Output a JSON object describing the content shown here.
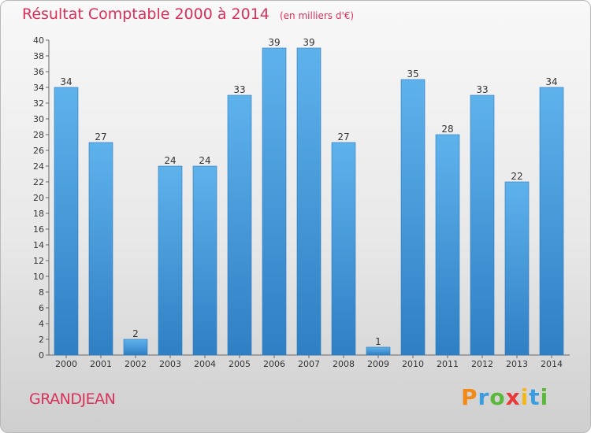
{
  "header": {
    "title": "Résultat Comptable 2000 à 2014",
    "unit": "(en milliers d'€)"
  },
  "footer": {
    "commune": "GRANDJEAN",
    "logo_text": "Proxiti",
    "logo_colors": [
      "#f28a1a",
      "#3a9de0",
      "#5bb83a",
      "#e83a3a",
      "#f2b81a",
      "#3a9de0",
      "#5bb83a"
    ]
  },
  "colors": {
    "bar_top": "#5eb2ec",
    "bar_bottom": "#2f7fc4",
    "accent": "#d9315a",
    "axis_text": "#333333"
  },
  "chart_data": {
    "type": "bar",
    "title": "Résultat Comptable 2000 à 2014",
    "xlabel": "",
    "ylabel": "",
    "categories": [
      "2000",
      "2001",
      "2002",
      "2003",
      "2004",
      "2005",
      "2006",
      "2007",
      "2008",
      "2009",
      "2010",
      "2011",
      "2012",
      "2013",
      "2014"
    ],
    "values": [
      34,
      27,
      2,
      24,
      24,
      33,
      39,
      39,
      27,
      1,
      35,
      28,
      33,
      22,
      34
    ],
    "ylim": [
      0,
      40
    ],
    "ytick_step": 2,
    "grid": false,
    "data_labels": true
  }
}
